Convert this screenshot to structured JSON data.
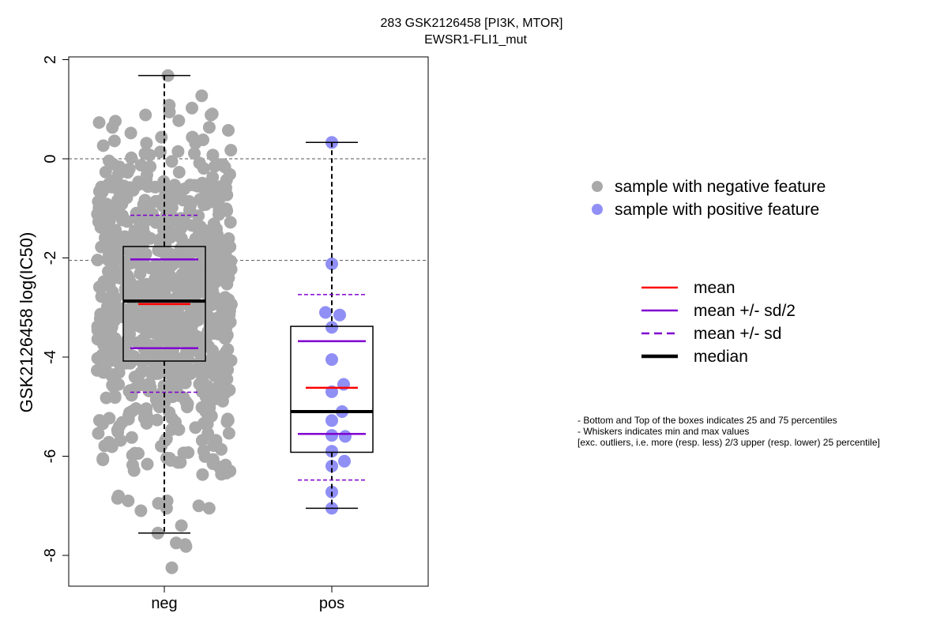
{
  "chart_data": {
    "type": "boxplot",
    "title": "283 GSK2126458 [PI3K, MTOR]",
    "subtitle": "EWSR1-FLI1_mut",
    "ylabel": "GSK2126458 log(IC50)",
    "ylim": [
      -8.6,
      2.1
    ],
    "yticks": [
      "-8",
      "-6",
      "-4",
      "-2",
      "0",
      "2"
    ],
    "categories": [
      "neg",
      "pos"
    ],
    "reference_lines": [
      0,
      -2.05
    ],
    "groups": [
      {
        "name": "neg",
        "min": -7.55,
        "q1": -4.08,
        "median": -2.87,
        "q3": -1.77,
        "max": 1.68,
        "mean": -2.93,
        "mean_minus_half_sd": -3.82,
        "mean_plus_half_sd": -2.03,
        "mean_minus_sd": -4.71,
        "mean_plus_sd": -1.14,
        "color": "#a9a9a9",
        "n_points": 900,
        "low_points": [
          -7.75,
          -7.82,
          -7.78,
          -8.25,
          -7.55,
          -7.4,
          -7.05,
          -6.9,
          -7.1,
          -6.85,
          -6.95,
          -7.05,
          -6.8,
          -6.9,
          -7.0
        ]
      },
      {
        "name": "pos",
        "min": -7.05,
        "q1": -5.92,
        "median": -5.1,
        "q3": -3.38,
        "max": 0.33,
        "mean": -4.62,
        "mean_minus_half_sd": -5.55,
        "mean_plus_half_sd": -3.68,
        "mean_minus_sd": -6.48,
        "mean_plus_sd": -2.74,
        "color": "#8f8ff5",
        "points": [
          0.33,
          -2.12,
          -3.1,
          -3.15,
          -3.4,
          -4.05,
          -4.55,
          -4.7,
          -5.1,
          -5.28,
          -5.58,
          -5.6,
          -5.9,
          -6.1,
          -6.2,
          -6.72,
          -7.05
        ]
      }
    ],
    "legend_points": [
      {
        "label": "sample with negative feature",
        "color": "#a9a9a9"
      },
      {
        "label": "sample with positive feature",
        "color": "#8f8ff5"
      }
    ],
    "legend_lines": [
      {
        "label": "mean",
        "color": "#ff0000",
        "style": "solid"
      },
      {
        "label": "mean +/- sd/2",
        "color": "#8000d0",
        "style": "solid"
      },
      {
        "label": "mean +/- sd",
        "color": "#8000d0",
        "style": "dashed"
      },
      {
        "label": "median",
        "color": "#000000",
        "style": "solid-thick"
      }
    ],
    "notes": [
      "- Bottom and Top of the boxes indicates 25 and 75 percentiles",
      "- Whiskers indicates min and max values",
      "[exc. outliers, i.e. more (resp. less) 2/3 upper (resp. lower) 25 percentile]"
    ]
  }
}
